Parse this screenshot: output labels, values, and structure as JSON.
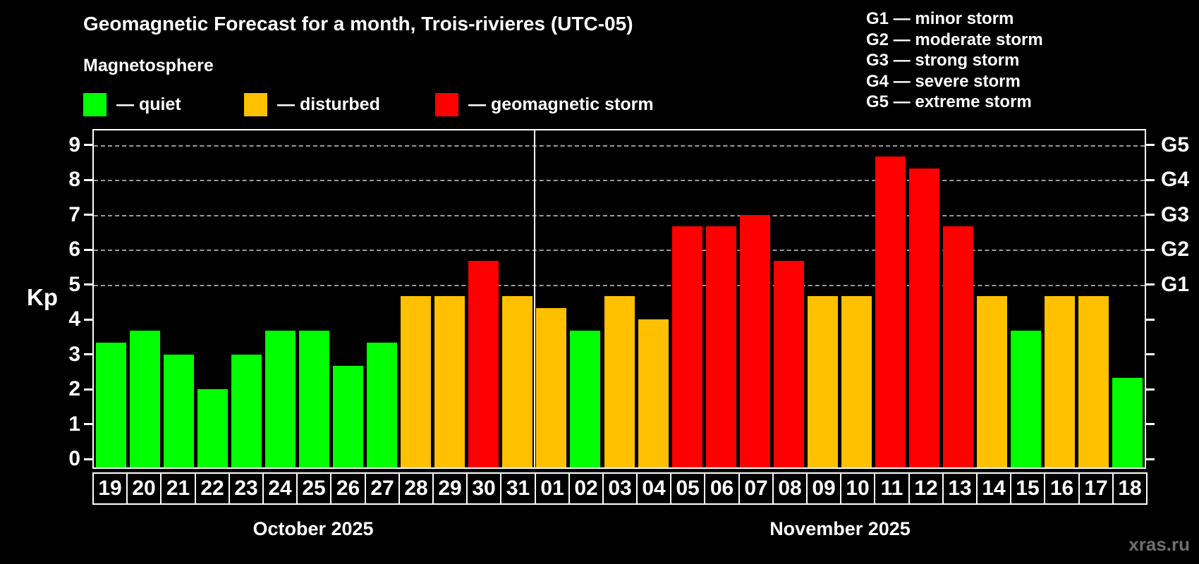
{
  "header": {
    "title": "Geomagnetic Forecast for a month, Trois-rivieres (UTC-05)",
    "subtitle": "Magnetosphere"
  },
  "legend": {
    "items": [
      {
        "key": "quiet",
        "label": "— quiet"
      },
      {
        "key": "disturbed",
        "label": "— disturbed"
      },
      {
        "key": "storm",
        "label": "— geomagnetic storm"
      }
    ]
  },
  "storm_scale_legend": {
    "lines": [
      "G1 — minor storm",
      "G2 — moderate storm",
      "G3 — strong storm",
      "G4 — severe storm",
      "G5 — extreme storm"
    ]
  },
  "watermark": "xras.ru",
  "colors": {
    "quiet": "#00ff00",
    "disturbed": "#ffc000",
    "storm": "#ff0000",
    "background": "#000000",
    "grid": "#9a9a9a",
    "axis": "#ffffff",
    "watermark": "#6f6f6f"
  },
  "chart_data": {
    "type": "bar",
    "title": "Geomagnetic Forecast for a month, Trois-rivieres (UTC-05)",
    "ylabel": "Kp",
    "ylim": [
      0,
      9
    ],
    "yticks": [
      0,
      1,
      2,
      3,
      4,
      5,
      6,
      7,
      8,
      9
    ],
    "gridlines_at": [
      5,
      6,
      7,
      8,
      9
    ],
    "grid": "horizontal dashed lines at Kp 5–9 only",
    "legend_position": "top-left",
    "right_axis": [
      {
        "kp": 5,
        "label": "G1"
      },
      {
        "kp": 6,
        "label": "G2"
      },
      {
        "kp": 7,
        "label": "G3"
      },
      {
        "kp": 8,
        "label": "G4"
      },
      {
        "kp": 9,
        "label": "G5"
      }
    ],
    "x_groups": [
      {
        "label": "October 2025",
        "days": 13
      },
      {
        "label": "November 2025",
        "days": 18
      }
    ],
    "categories": [
      "19",
      "20",
      "21",
      "22",
      "23",
      "24",
      "25",
      "26",
      "27",
      "28",
      "29",
      "30",
      "31",
      "01",
      "02",
      "03",
      "04",
      "05",
      "06",
      "07",
      "08",
      "09",
      "10",
      "11",
      "12",
      "13",
      "14",
      "15",
      "16",
      "17",
      "18"
    ],
    "points": [
      {
        "day": "19",
        "month": "October 2025",
        "value": 3.33,
        "status": "quiet"
      },
      {
        "day": "20",
        "month": "October 2025",
        "value": 3.67,
        "status": "quiet"
      },
      {
        "day": "21",
        "month": "October 2025",
        "value": 3.0,
        "status": "quiet"
      },
      {
        "day": "22",
        "month": "October 2025",
        "value": 2.0,
        "status": "quiet"
      },
      {
        "day": "23",
        "month": "October 2025",
        "value": 3.0,
        "status": "quiet"
      },
      {
        "day": "24",
        "month": "October 2025",
        "value": 3.67,
        "status": "quiet"
      },
      {
        "day": "25",
        "month": "October 2025",
        "value": 3.67,
        "status": "quiet"
      },
      {
        "day": "26",
        "month": "October 2025",
        "value": 2.67,
        "status": "quiet"
      },
      {
        "day": "27",
        "month": "October 2025",
        "value": 3.33,
        "status": "quiet"
      },
      {
        "day": "28",
        "month": "October 2025",
        "value": 4.67,
        "status": "disturbed"
      },
      {
        "day": "29",
        "month": "October 2025",
        "value": 4.67,
        "status": "disturbed"
      },
      {
        "day": "30",
        "month": "October 2025",
        "value": 5.67,
        "status": "storm"
      },
      {
        "day": "31",
        "month": "October 2025",
        "value": 4.67,
        "status": "disturbed"
      },
      {
        "day": "01",
        "month": "November 2025",
        "value": 4.33,
        "status": "disturbed"
      },
      {
        "day": "02",
        "month": "November 2025",
        "value": 3.67,
        "status": "quiet"
      },
      {
        "day": "03",
        "month": "November 2025",
        "value": 4.67,
        "status": "disturbed"
      },
      {
        "day": "04",
        "month": "November 2025",
        "value": 4.0,
        "status": "disturbed"
      },
      {
        "day": "05",
        "month": "November 2025",
        "value": 6.67,
        "status": "storm"
      },
      {
        "day": "06",
        "month": "November 2025",
        "value": 6.67,
        "status": "storm"
      },
      {
        "day": "07",
        "month": "November 2025",
        "value": 7.0,
        "status": "storm"
      },
      {
        "day": "08",
        "month": "November 2025",
        "value": 5.67,
        "status": "storm"
      },
      {
        "day": "09",
        "month": "November 2025",
        "value": 4.67,
        "status": "disturbed"
      },
      {
        "day": "10",
        "month": "November 2025",
        "value": 4.67,
        "status": "disturbed"
      },
      {
        "day": "11",
        "month": "November 2025",
        "value": 8.67,
        "status": "storm"
      },
      {
        "day": "12",
        "month": "November 2025",
        "value": 8.33,
        "status": "storm"
      },
      {
        "day": "13",
        "month": "November 2025",
        "value": 6.67,
        "status": "storm"
      },
      {
        "day": "14",
        "month": "November 2025",
        "value": 4.67,
        "status": "disturbed"
      },
      {
        "day": "15",
        "month": "November 2025",
        "value": 3.67,
        "status": "quiet"
      },
      {
        "day": "16",
        "month": "November 2025",
        "value": 4.67,
        "status": "disturbed"
      },
      {
        "day": "17",
        "month": "November 2025",
        "value": 4.67,
        "status": "disturbed"
      },
      {
        "day": "18",
        "month": "November 2025",
        "value": 2.33,
        "status": "quiet"
      }
    ]
  }
}
